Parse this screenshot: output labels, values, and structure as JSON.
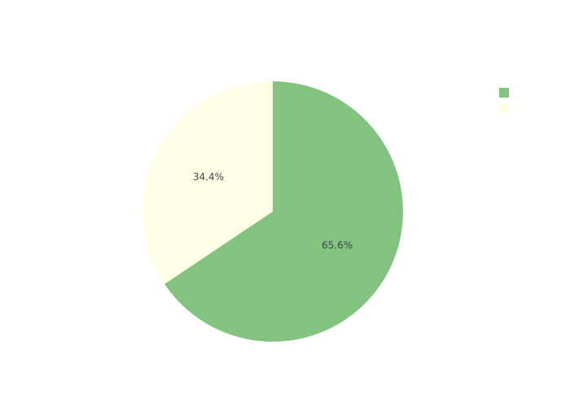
{
  "chart_data": {
    "type": "pie",
    "title": "",
    "slices": [
      {
        "label": "",
        "value": 65.6,
        "value_label": "65.6%",
        "color": "#82c47f"
      },
      {
        "label": "",
        "value": 34.4,
        "value_label": "34.4%",
        "color": "#ffffe5"
      }
    ],
    "start_angle_deg": 90,
    "direction": "clockwise",
    "legend": {
      "position": "top-right",
      "show": true
    }
  }
}
